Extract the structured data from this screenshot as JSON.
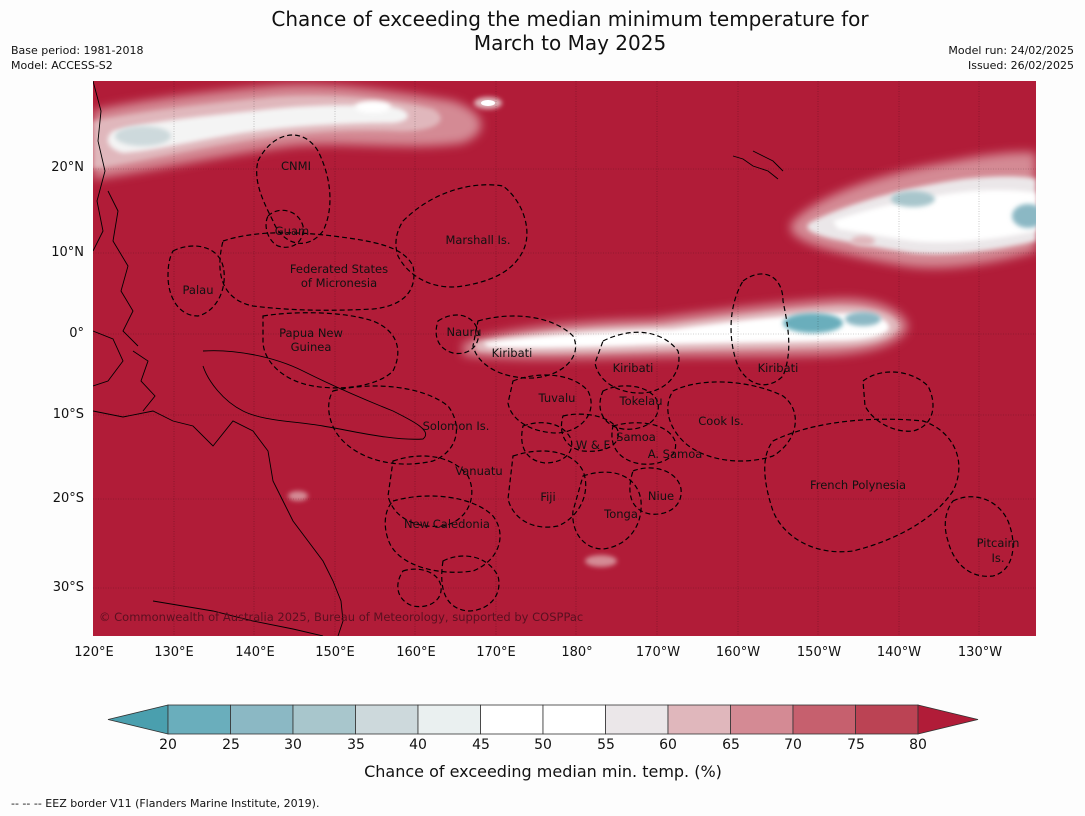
{
  "header": {
    "title_line1": "Chance of exceeding the median minimum temperature for",
    "title_line2": "March to May 2025",
    "base_period": "Base period: 1981-2018",
    "model": "Model: ACCESS-S2",
    "model_run": "Model run: 24/02/2025",
    "issued": "Issued: 26/02/2025"
  },
  "map": {
    "background_color": "#b11c38",
    "copyright": "© Commonwealth of Australia 2025, Bureau of Meteorology, supported by COSPPac",
    "lat_labels": [
      "20°N",
      "10°N",
      "0°",
      "10°S",
      "20°S",
      "30°S"
    ],
    "lon_labels": [
      "120°E",
      "130°E",
      "140°E",
      "150°E",
      "160°E",
      "170°E",
      "180°",
      "170°W",
      "160°W",
      "150°W",
      "140°W",
      "130°W"
    ],
    "regions": {
      "cnmi": "CNMI",
      "guam": "Guam",
      "marshall": "Marshall Is.",
      "fsm_1": "Federated States",
      "fsm_2": "of Micronesia",
      "palau": "Palau",
      "png_1": "Papua New",
      "png_2": "Guinea",
      "nauru": "Nauru",
      "kiribati_w": "Kiribati",
      "kiribati_c": "Kiribati",
      "kiribati_e": "Kiribati",
      "tuvalu": "Tuvalu",
      "tokelau": "Tokelau",
      "solomon": "Solomon Is.",
      "wf": "W & F",
      "samoa": "Samoa",
      "am_samoa": "A. Samoa",
      "cook": "Cook Is.",
      "vanuatu": "Vanuatu",
      "fiji": "Fiji",
      "niue": "Niue",
      "tonga": "Tonga",
      "new_caledonia": "New Caledonia",
      "french_polynesia": "French Polynesia",
      "pitcairn_1": "Pitcairn",
      "pitcairn_2": "Is."
    }
  },
  "colorbar": {
    "ticks": [
      "20",
      "25",
      "30",
      "35",
      "40",
      "45",
      "50",
      "55",
      "60",
      "65",
      "70",
      "75",
      "80"
    ],
    "colors": [
      "#4a9fae",
      "#6aaebc",
      "#8bb8c4",
      "#a8c6cc",
      "#cdd9dc",
      "#eaf0f0",
      "#ffffff",
      "#ffffff",
      "#ebe7e9",
      "#e0b7bc",
      "#d48a94",
      "#c6606e",
      "#bb4354",
      "#b11c38"
    ],
    "label": "Chance of exceeding median min. temp. (%)"
  },
  "footnote": "--  --  -- EEZ border V11 (Flanders Marine Institute, 2019)."
}
